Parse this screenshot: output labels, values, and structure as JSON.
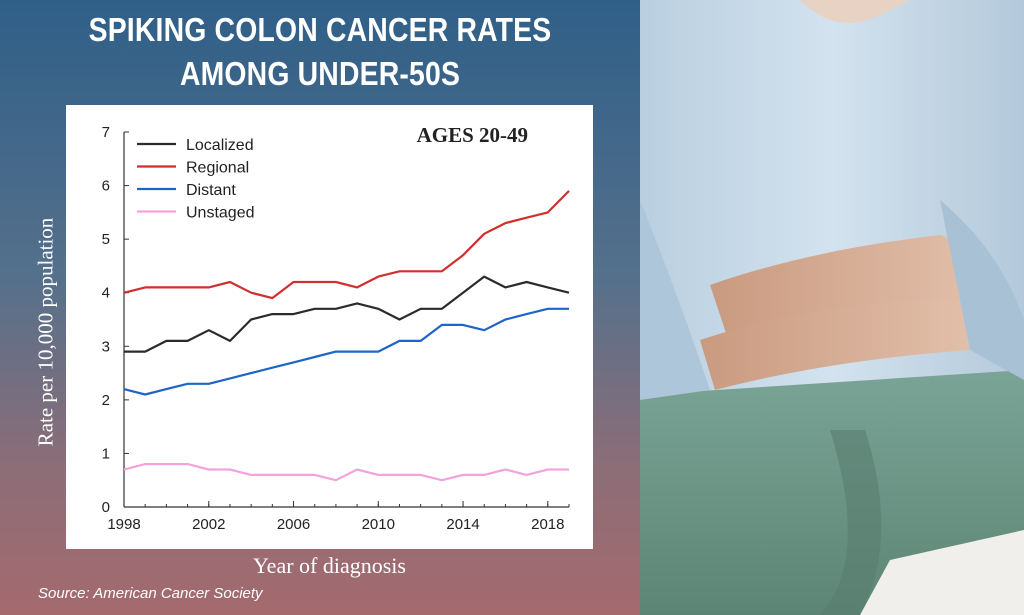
{
  "headline": {
    "line1": "SPIKING COLON CANCER RATES",
    "line2": "AMONG UNDER-50S"
  },
  "source": "Source: American Cancer Society",
  "photo": {
    "icon": "person-holding-stomach-photo",
    "colors": {
      "shirt": "#c9dbe9",
      "pants": "#6f9a8b",
      "skin": "#d8b49e",
      "background": "#e4e1dc"
    }
  },
  "chart_data": {
    "type": "line",
    "title": "AGES 20-49",
    "xlabel": "Year of diagnosis",
    "ylabel": "Rate per 10,000 population",
    "xlim": [
      1998,
      2019
    ],
    "ylim": [
      0,
      7
    ],
    "x_ticks": [
      1998,
      2002,
      2006,
      2010,
      2014,
      2018
    ],
    "y_ticks": [
      0,
      1,
      2,
      3,
      4,
      5,
      6,
      7
    ],
    "grid": false,
    "legend_position": "top-left",
    "x": [
      1998,
      1999,
      2000,
      2001,
      2002,
      2003,
      2004,
      2005,
      2006,
      2007,
      2008,
      2009,
      2010,
      2011,
      2012,
      2013,
      2014,
      2015,
      2016,
      2017,
      2018,
      2019
    ],
    "series": [
      {
        "name": "Localized",
        "color": "#2b2b2b",
        "values": [
          2.9,
          2.9,
          3.1,
          3.1,
          3.3,
          3.1,
          3.5,
          3.6,
          3.6,
          3.7,
          3.7,
          3.8,
          3.7,
          3.5,
          3.7,
          3.7,
          4.0,
          4.3,
          4.1,
          4.2,
          4.1,
          4.0
        ]
      },
      {
        "name": "Regional",
        "color": "#d12f2f",
        "values": [
          4.0,
          4.1,
          4.1,
          4.1,
          4.1,
          4.2,
          4.0,
          3.9,
          4.2,
          4.2,
          4.2,
          4.1,
          4.3,
          4.4,
          4.4,
          4.4,
          4.7,
          5.1,
          5.3,
          5.4,
          5.5,
          5.9
        ]
      },
      {
        "name": "Distant",
        "color": "#1f64c8",
        "values": [
          2.2,
          2.1,
          2.2,
          2.3,
          2.3,
          2.4,
          2.5,
          2.6,
          2.7,
          2.8,
          2.9,
          2.9,
          2.9,
          3.1,
          3.1,
          3.4,
          3.4,
          3.3,
          3.5,
          3.6,
          3.7,
          3.7
        ]
      },
      {
        "name": "Unstaged",
        "color": "#f2a3de",
        "values": [
          0.7,
          0.8,
          0.8,
          0.8,
          0.7,
          0.7,
          0.6,
          0.6,
          0.6,
          0.6,
          0.5,
          0.7,
          0.6,
          0.6,
          0.6,
          0.5,
          0.6,
          0.6,
          0.7,
          0.6,
          0.7,
          0.7
        ]
      }
    ]
  }
}
